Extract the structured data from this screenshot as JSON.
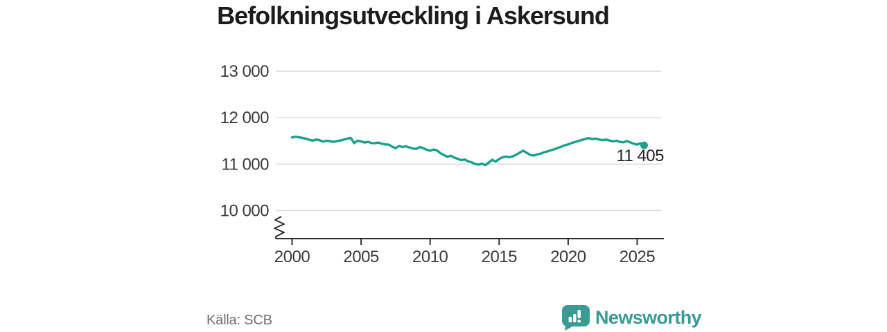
{
  "title": "Befolkningsutveckling i Askersund",
  "source": "Källa: SCB",
  "branding": {
    "name": "Newsworthy",
    "icon": "newsworthy-speech-bubble-bar-chart-icon",
    "color": "#3a9b94"
  },
  "colors": {
    "line": "#1aa18d",
    "end_dot": "#1aa18d",
    "grid": "#d9d9d9",
    "axis": "#2e2e2e",
    "tick_text": "#3a3a3a",
    "end_label_text": "#222222",
    "title_text": "#1c1c1c",
    "source_text": "#707070",
    "brand": "#3a9b94"
  },
  "chart_data": {
    "type": "line",
    "title": "Befolkningsutveckling i Askersund",
    "xlabel": "",
    "ylabel": "",
    "grid": "horizontal",
    "y_axis_break": true,
    "legend": "none",
    "x_ticks": [
      2000,
      2005,
      2010,
      2015,
      2020,
      2025
    ],
    "y_ticks": [
      13000,
      12000,
      11000,
      10000
    ],
    "y_tick_labels": [
      "13 000",
      "12 000",
      "11 000",
      "10 000"
    ],
    "ylim_displayed": [
      10000,
      13000
    ],
    "xlim": [
      1998.8,
      2026.9
    ],
    "end_label": "11 405",
    "end_value": 11405,
    "source": "Källa: SCB",
    "series": [
      {
        "points": [
          [
            2000.0,
            11575
          ],
          [
            2000.25,
            11590
          ],
          [
            2000.5,
            11580
          ],
          [
            2000.75,
            11565
          ],
          [
            2001.0,
            11550
          ],
          [
            2001.25,
            11525
          ],
          [
            2001.5,
            11505
          ],
          [
            2001.75,
            11530
          ],
          [
            2002.0,
            11515
          ],
          [
            2002.25,
            11485
          ],
          [
            2002.5,
            11505
          ],
          [
            2002.75,
            11495
          ],
          [
            2003.0,
            11480
          ],
          [
            2003.25,
            11495
          ],
          [
            2003.5,
            11510
          ],
          [
            2003.75,
            11530
          ],
          [
            2004.0,
            11550
          ],
          [
            2004.25,
            11565
          ],
          [
            2004.5,
            11455
          ],
          [
            2004.75,
            11505
          ],
          [
            2005.0,
            11490
          ],
          [
            2005.25,
            11465
          ],
          [
            2005.5,
            11480
          ],
          [
            2005.75,
            11455
          ],
          [
            2006.0,
            11450
          ],
          [
            2006.25,
            11465
          ],
          [
            2006.5,
            11440
          ],
          [
            2006.75,
            11425
          ],
          [
            2007.0,
            11420
          ],
          [
            2007.25,
            11375
          ],
          [
            2007.5,
            11345
          ],
          [
            2007.75,
            11390
          ],
          [
            2008.0,
            11370
          ],
          [
            2008.25,
            11385
          ],
          [
            2008.5,
            11360
          ],
          [
            2008.75,
            11335
          ],
          [
            2009.0,
            11330
          ],
          [
            2009.25,
            11370
          ],
          [
            2009.5,
            11345
          ],
          [
            2009.75,
            11310
          ],
          [
            2010.0,
            11290
          ],
          [
            2010.25,
            11315
          ],
          [
            2010.5,
            11295
          ],
          [
            2010.75,
            11235
          ],
          [
            2011.0,
            11195
          ],
          [
            2011.25,
            11160
          ],
          [
            2011.5,
            11180
          ],
          [
            2011.75,
            11140
          ],
          [
            2012.0,
            11115
          ],
          [
            2012.25,
            11085
          ],
          [
            2012.5,
            11100
          ],
          [
            2012.75,
            11060
          ],
          [
            2013.0,
            11040
          ],
          [
            2013.25,
            11005
          ],
          [
            2013.5,
            10990
          ],
          [
            2013.75,
            11010
          ],
          [
            2014.0,
            10980
          ],
          [
            2014.25,
            11035
          ],
          [
            2014.5,
            11095
          ],
          [
            2014.75,
            11055
          ],
          [
            2015.0,
            11110
          ],
          [
            2015.25,
            11150
          ],
          [
            2015.5,
            11165
          ],
          [
            2015.75,
            11150
          ],
          [
            2016.0,
            11170
          ],
          [
            2016.25,
            11205
          ],
          [
            2016.5,
            11250
          ],
          [
            2016.75,
            11290
          ],
          [
            2017.0,
            11245
          ],
          [
            2017.25,
            11200
          ],
          [
            2017.5,
            11185
          ],
          [
            2017.75,
            11210
          ],
          [
            2018.0,
            11225
          ],
          [
            2018.25,
            11255
          ],
          [
            2018.5,
            11275
          ],
          [
            2018.75,
            11300
          ],
          [
            2019.0,
            11320
          ],
          [
            2019.25,
            11350
          ],
          [
            2019.5,
            11375
          ],
          [
            2019.75,
            11405
          ],
          [
            2020.0,
            11425
          ],
          [
            2020.25,
            11455
          ],
          [
            2020.5,
            11475
          ],
          [
            2020.75,
            11500
          ],
          [
            2021.0,
            11520
          ],
          [
            2021.25,
            11545
          ],
          [
            2021.5,
            11560
          ],
          [
            2021.75,
            11540
          ],
          [
            2022.0,
            11550
          ],
          [
            2022.25,
            11530
          ],
          [
            2022.5,
            11515
          ],
          [
            2022.75,
            11530
          ],
          [
            2023.0,
            11510
          ],
          [
            2023.25,
            11490
          ],
          [
            2023.5,
            11505
          ],
          [
            2023.75,
            11480
          ],
          [
            2024.0,
            11470
          ],
          [
            2024.25,
            11500
          ],
          [
            2024.5,
            11470
          ],
          [
            2024.75,
            11440
          ],
          [
            2025.0,
            11420
          ],
          [
            2025.25,
            11450
          ],
          [
            2025.5,
            11405
          ]
        ]
      }
    ]
  }
}
